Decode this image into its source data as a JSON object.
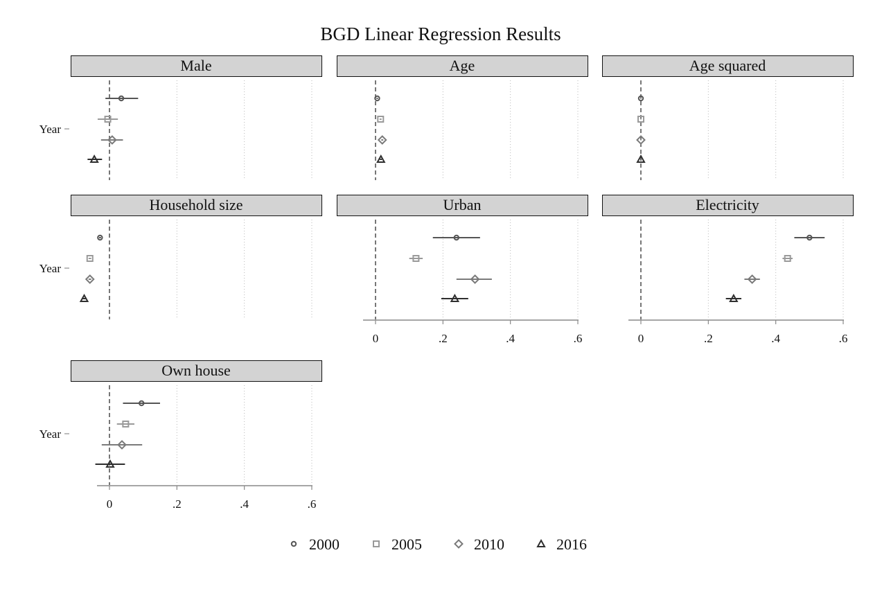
{
  "chart_data": {
    "type": "scatter",
    "subtype": "coefficient-plot",
    "title": "BGD Linear Regression Results",
    "y_tick_label": "Year",
    "x_ticks": [
      0,
      0.2,
      0.4,
      0.6
    ],
    "x_tick_labels": [
      "0",
      ".2",
      ".4",
      ".6"
    ],
    "xlim": [
      -0.11,
      0.63
    ],
    "reference_line": 0,
    "grid": "vertical dotted",
    "legend": {
      "position": "bottom",
      "items": [
        "2000",
        "2005",
        "2010",
        "2016"
      ]
    },
    "series_styles": [
      {
        "name": "2000",
        "marker": "circle",
        "color": "#555555"
      },
      {
        "name": "2005",
        "marker": "square",
        "color": "#9a9a9a"
      },
      {
        "name": "2010",
        "marker": "diamond",
        "color": "#7a7a7a"
      },
      {
        "name": "2016",
        "marker": "triangle",
        "color": "#2e2e2e"
      }
    ],
    "panels": [
      {
        "title": "Male",
        "show_x_axis": false,
        "estimates": [
          {
            "year": "2000",
            "value": 0.035,
            "ci": [
              -0.012,
              0.085
            ]
          },
          {
            "year": "2005",
            "value": -0.005,
            "ci": [
              -0.035,
              0.025
            ]
          },
          {
            "year": "2010",
            "value": 0.008,
            "ci": [
              -0.025,
              0.04
            ]
          },
          {
            "year": "2016",
            "value": -0.045,
            "ci": [
              -0.065,
              -0.022
            ]
          }
        ]
      },
      {
        "title": "Age",
        "show_x_axis": false,
        "estimates": [
          {
            "year": "2000",
            "value": 0.005,
            "ci": [
              0.003,
              0.007
            ]
          },
          {
            "year": "2005",
            "value": 0.015,
            "ci": [
              0.012,
              0.018
            ]
          },
          {
            "year": "2010",
            "value": 0.02,
            "ci": [
              0.017,
              0.023
            ]
          },
          {
            "year": "2016",
            "value": 0.016,
            "ci": [
              0.013,
              0.019
            ]
          }
        ]
      },
      {
        "title": "Age squared",
        "show_x_axis": false,
        "estimates": [
          {
            "year": "2000",
            "value": 0.0,
            "ci": [
              -0.001,
              0.001
            ]
          },
          {
            "year": "2005",
            "value": 0.0,
            "ci": [
              -0.001,
              0.001
            ]
          },
          {
            "year": "2010",
            "value": 0.0,
            "ci": [
              -0.001,
              0.001
            ]
          },
          {
            "year": "2016",
            "value": 0.0,
            "ci": [
              -0.001,
              0.001
            ]
          }
        ]
      },
      {
        "title": "Household size",
        "show_x_axis": false,
        "estimates": [
          {
            "year": "2000",
            "value": -0.028,
            "ci": [
              -0.031,
              -0.025
            ]
          },
          {
            "year": "2005",
            "value": -0.058,
            "ci": [
              -0.062,
              -0.054
            ]
          },
          {
            "year": "2010",
            "value": -0.058,
            "ci": [
              -0.062,
              -0.054
            ]
          },
          {
            "year": "2016",
            "value": -0.075,
            "ci": [
              -0.079,
              -0.071
            ]
          }
        ]
      },
      {
        "title": "Urban",
        "show_x_axis": true,
        "estimates": [
          {
            "year": "2000",
            "value": 0.24,
            "ci": [
              0.17,
              0.31
            ]
          },
          {
            "year": "2005",
            "value": 0.12,
            "ci": [
              0.1,
              0.14
            ]
          },
          {
            "year": "2010",
            "value": 0.295,
            "ci": [
              0.24,
              0.345
            ]
          },
          {
            "year": "2016",
            "value": 0.235,
            "ci": [
              0.195,
              0.275
            ]
          }
        ]
      },
      {
        "title": "Electricity",
        "show_x_axis": true,
        "estimates": [
          {
            "year": "2000",
            "value": 0.5,
            "ci": [
              0.455,
              0.545
            ]
          },
          {
            "year": "2005",
            "value": 0.435,
            "ci": [
              0.42,
              0.45
            ]
          },
          {
            "year": "2010",
            "value": 0.33,
            "ci": [
              0.307,
              0.353
            ]
          },
          {
            "year": "2016",
            "value": 0.275,
            "ci": [
              0.252,
              0.298
            ]
          }
        ]
      },
      {
        "title": "Own house",
        "show_x_axis": true,
        "estimates": [
          {
            "year": "2000",
            "value": 0.095,
            "ci": [
              0.04,
              0.15
            ]
          },
          {
            "year": "2005",
            "value": 0.048,
            "ci": [
              0.022,
              0.074
            ]
          },
          {
            "year": "2010",
            "value": 0.037,
            "ci": [
              -0.023,
              0.097
            ]
          },
          {
            "year": "2016",
            "value": 0.002,
            "ci": [
              -0.042,
              0.046
            ]
          }
        ]
      }
    ]
  }
}
